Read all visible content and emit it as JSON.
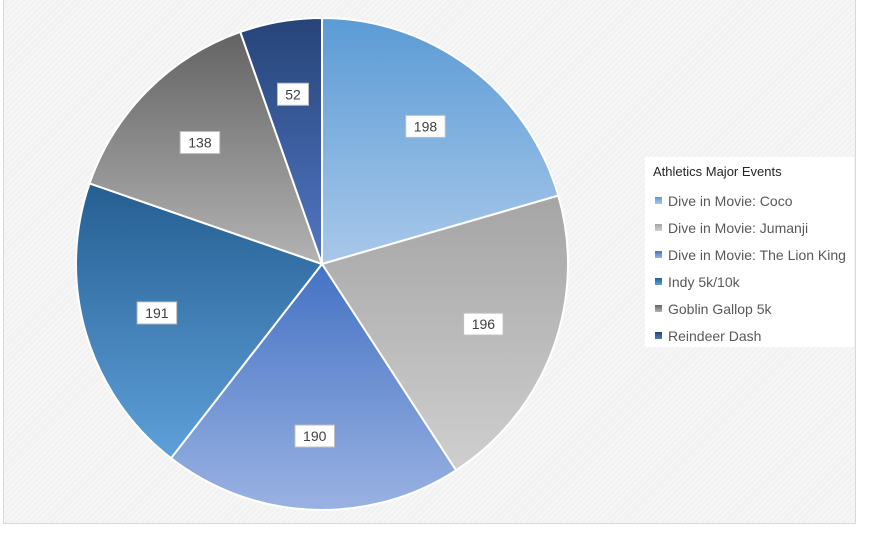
{
  "chart_data": {
    "type": "pie",
    "title": "",
    "legend_title": "Athletics Major Events",
    "legend_position": "right",
    "categories": [
      "Dive in Movie: Coco",
      "Dive in Movie: Jumanji",
      "Dive in Movie: The Lion King",
      "Indy 5k/10k",
      "Goblin Gallop 5k",
      "Reindeer Dash"
    ],
    "values": [
      198,
      196,
      190,
      191,
      138,
      52
    ],
    "colors": [
      "#8fb8e0",
      "#b5b5b5",
      "#7e9bd6",
      "#3f7fbf",
      "#8c8c8c",
      "#2e5aa0"
    ],
    "gradient_light": [
      "#a9c8ea",
      "#cfcfcf",
      "#9ab2e2",
      "#5ea0da",
      "#b3b3b3",
      "#5276c4"
    ],
    "gradient_dark": [
      "#5b9bd5",
      "#a5a5a5",
      "#4472c4",
      "#255e91",
      "#636363",
      "#264478"
    ],
    "show_data_labels": true
  }
}
